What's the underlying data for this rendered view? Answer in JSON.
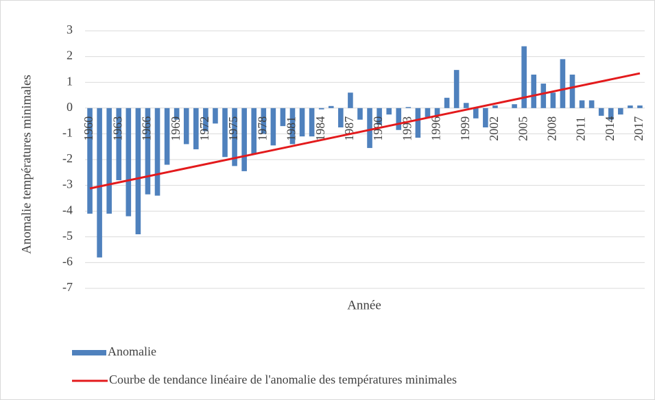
{
  "chart_data": {
    "type": "bar",
    "y_label": "Anomalie températures minimales",
    "x_label": "Année",
    "categories": [
      "1960",
      null,
      null,
      "1963",
      null,
      null,
      "1966",
      null,
      null,
      "1969",
      null,
      null,
      "1972",
      null,
      null,
      "1975",
      null,
      null,
      "1978",
      null,
      null,
      "1981",
      null,
      null,
      "1984",
      null,
      null,
      "1987",
      null,
      null,
      "1990",
      null,
      null,
      "1993",
      null,
      null,
      "1996",
      null,
      null,
      "1999",
      null,
      null,
      "2002",
      null,
      null,
      "2005",
      null,
      null,
      "2008",
      null,
      null,
      "2011",
      null,
      null,
      "2014",
      null,
      null,
      "2017"
    ],
    "series": [
      {
        "name": "Anomalie",
        "color": "#4f81bd",
        "values": [
          -4.1,
          -5.8,
          -4.1,
          -2.8,
          -4.2,
          -4.9,
          -3.35,
          -3.4,
          -2.2,
          -0.45,
          -1.4,
          -1.6,
          -0.9,
          -0.6,
          -1.9,
          -2.25,
          -2.45,
          -1.8,
          -1.0,
          -1.45,
          -0.7,
          -1.4,
          -1.1,
          -1.1,
          -0.05,
          0.08,
          -0.75,
          0.6,
          -0.45,
          -1.55,
          -0.65,
          -0.25,
          -0.85,
          0.04,
          -1.15,
          -0.35,
          -0.3,
          0.4,
          1.48,
          0.2,
          -0.4,
          -0.75,
          0.1,
          0,
          0.15,
          2.4,
          1.3,
          0.95,
          0.6,
          1.9,
          1.3,
          0.3,
          0.3,
          -0.3,
          -0.45,
          -0.25,
          0.1,
          0.1
        ]
      }
    ],
    "trendline": {
      "name": "Courbe de tendance linéaire de l'anomalie des températures minimales",
      "color": "#e31a1c",
      "values": [
        -3.12,
        1.35
      ]
    },
    "ylim": [
      -7,
      3
    ],
    "yticks": [
      -7,
      -6,
      -5,
      -4,
      -3,
      -2,
      -1,
      0,
      1,
      2,
      3
    ],
    "grid": true,
    "legend": "bottom"
  }
}
